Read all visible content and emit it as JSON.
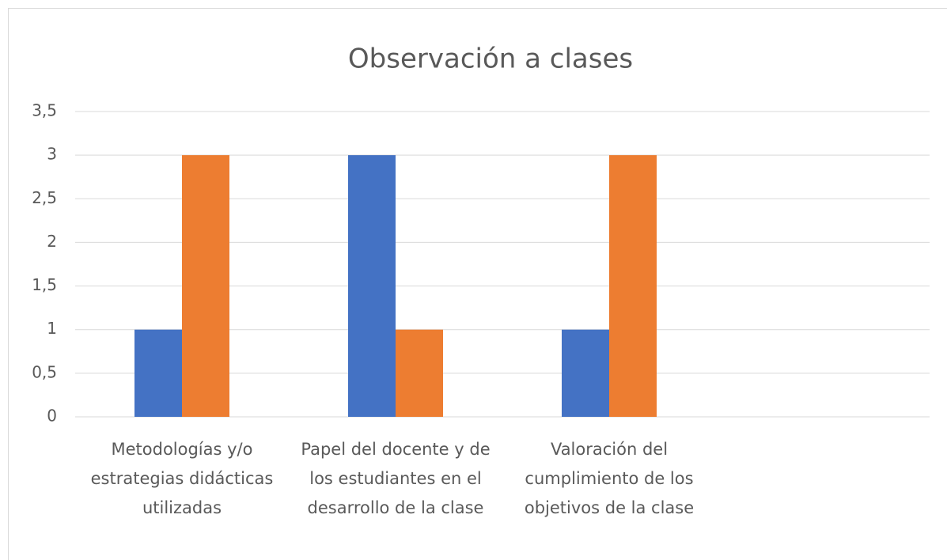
{
  "chart_data": {
    "type": "bar",
    "title": "Observación a clases",
    "categories": [
      "Metodologías y/o estrategias didácticas utilizadas",
      "Papel del docente y de los estudiantes en el desarrollo de la clase",
      "Valoración del cumplimiento de los objetivos de la clase",
      null
    ],
    "series": [
      {
        "color": "#4472c4",
        "values": [
          1,
          3,
          1,
          null
        ]
      },
      {
        "color": "#ed7d31",
        "values": [
          3,
          1,
          3,
          null
        ]
      }
    ],
    "ylim": [
      0,
      3.5
    ],
    "yticks": [
      0,
      {
        "value": 0.5,
        "label": "0,5"
      },
      1,
      {
        "value": 1.5,
        "label": "1,5"
      },
      2,
      {
        "value": 2.5,
        "label": "2,5"
      },
      3,
      {
        "value": 3.5,
        "label": "3,5"
      }
    ],
    "grid": true
  }
}
